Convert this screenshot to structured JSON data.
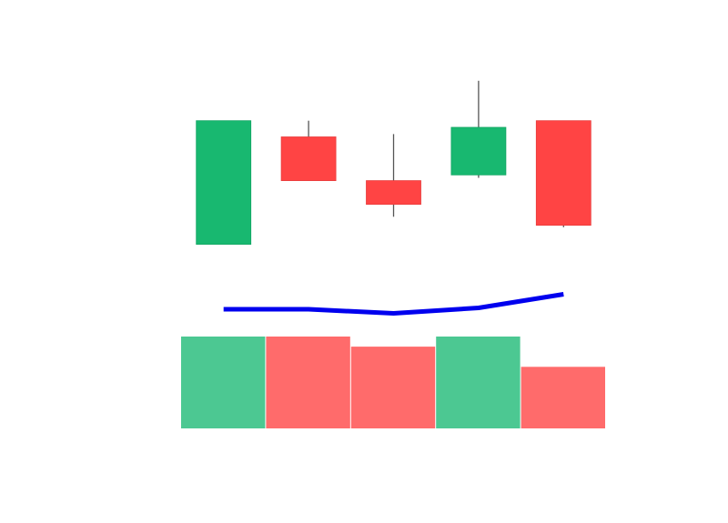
{
  "chart_data": {
    "type": "candlestick",
    "grid": false,
    "legend": "none",
    "candles": [
      {
        "open": 85.0,
        "high": 150.0,
        "low": 85.0,
        "close": 150.0,
        "volume": 100
      },
      {
        "open": 141.5,
        "high": 150.0,
        "low": 118.5,
        "close": 118.5,
        "volume": 100
      },
      {
        "open": 118.5,
        "high": 143.0,
        "low": 99.5,
        "close": 106.0,
        "volume": 89
      },
      {
        "open": 121.5,
        "high": 171.0,
        "low": 120.0,
        "close": 146.5,
        "volume": 100
      },
      {
        "open": 150.0,
        "high": 150.0,
        "low": 94.0,
        "close": 95.0,
        "volume": 67
      }
    ],
    "moving_average": [
      100,
      100,
      97,
      101,
      111
    ],
    "price_range": [
      70,
      180
    ],
    "volume_range": [
      0,
      100
    ],
    "colors": {
      "up": "#18b870",
      "down": "#ff4444",
      "up_volume": "#4cc892",
      "down_volume": "#ff6b6b",
      "wick": "#555555",
      "ma_line": "#0000ee"
    }
  }
}
